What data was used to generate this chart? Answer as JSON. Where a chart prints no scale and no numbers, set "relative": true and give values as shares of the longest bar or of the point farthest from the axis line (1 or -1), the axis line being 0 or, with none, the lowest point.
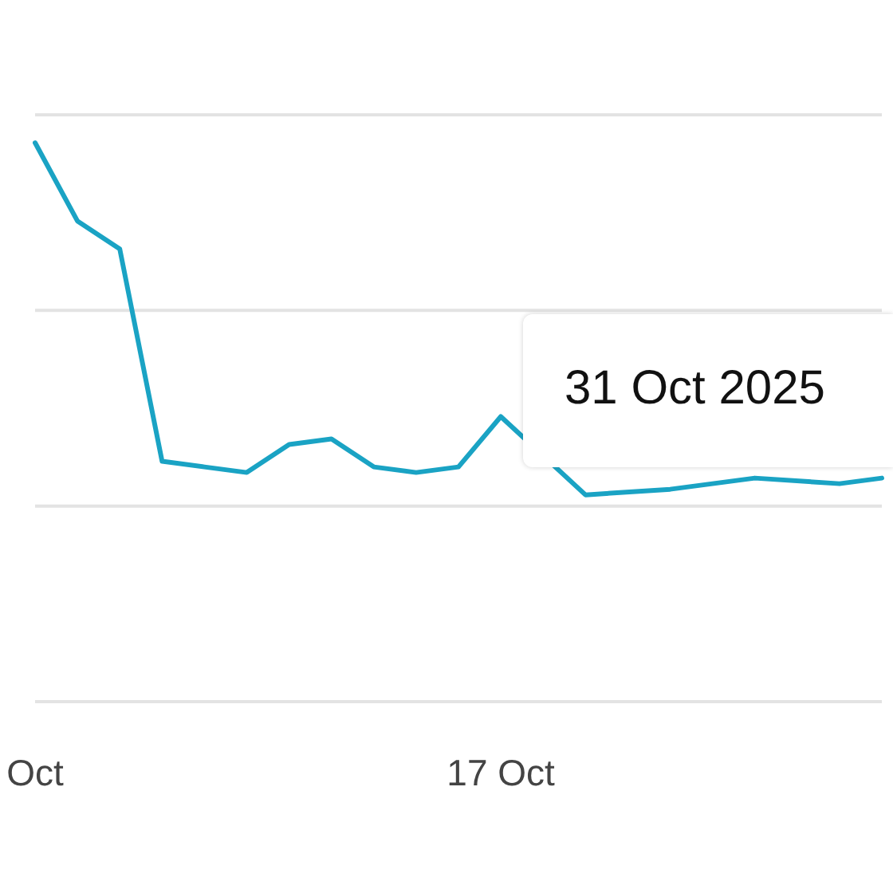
{
  "chart_data": {
    "type": "line",
    "relative": true,
    "legend": false,
    "marker": "none",
    "line_style": "solid",
    "categories": [
      "Oct",
      null,
      null,
      null,
      null,
      null,
      null,
      null,
      null,
      null,
      null,
      "17 Oct",
      null,
      null,
      null,
      null,
      null,
      null,
      null,
      null,
      null
    ],
    "series": [
      {
        "color": "#1aa3c4",
        "values": [
          1.0,
          0.86,
          0.81,
          0.43,
          0.42,
          0.41,
          0.46,
          0.47,
          0.42,
          0.41,
          0.42,
          0.51,
          null,
          0.37,
          null,
          0.38,
          null,
          0.4,
          null,
          0.39,
          0.4
        ]
      }
    ],
    "ref_lines": [
      {
        "axis": "y",
        "value": 0.35,
        "color": "#e3e3e3"
      },
      {
        "axis": "y",
        "value": 0.7,
        "color": "#e3e3e3"
      },
      {
        "axis": "y",
        "value": 1.05,
        "color": "#e3e3e3"
      }
    ],
    "annotations": [
      "31 Oct 2025"
    ]
  }
}
